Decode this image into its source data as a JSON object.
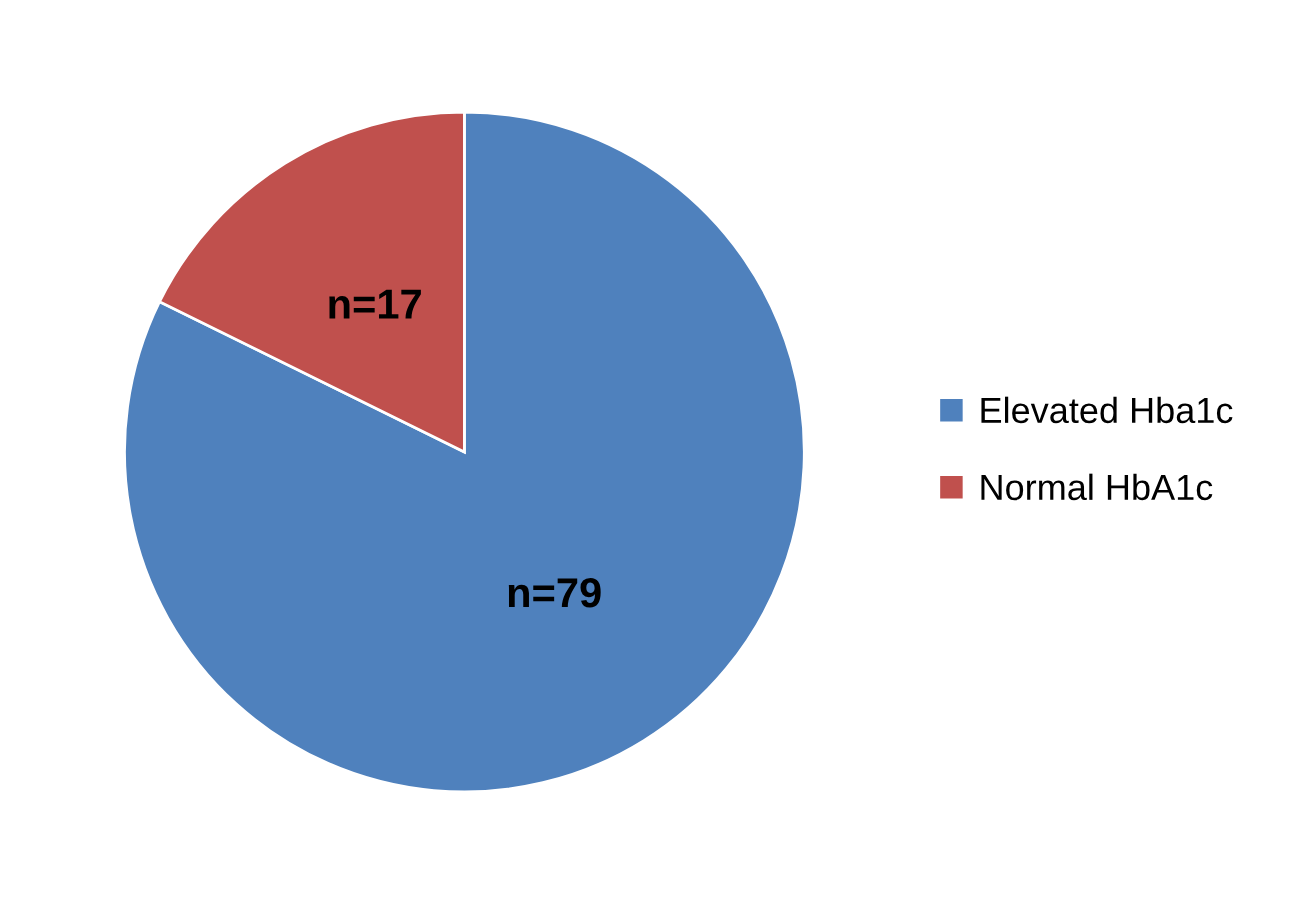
{
  "chart_data": {
    "type": "pie",
    "categories": [
      "Elevated Hba1c",
      "Normal HbA1c"
    ],
    "values": [
      79,
      17
    ],
    "colors": [
      "#4f81bd",
      "#c0504d"
    ],
    "value_labels": [
      "n=79",
      "n=17"
    ],
    "legend": "right"
  }
}
